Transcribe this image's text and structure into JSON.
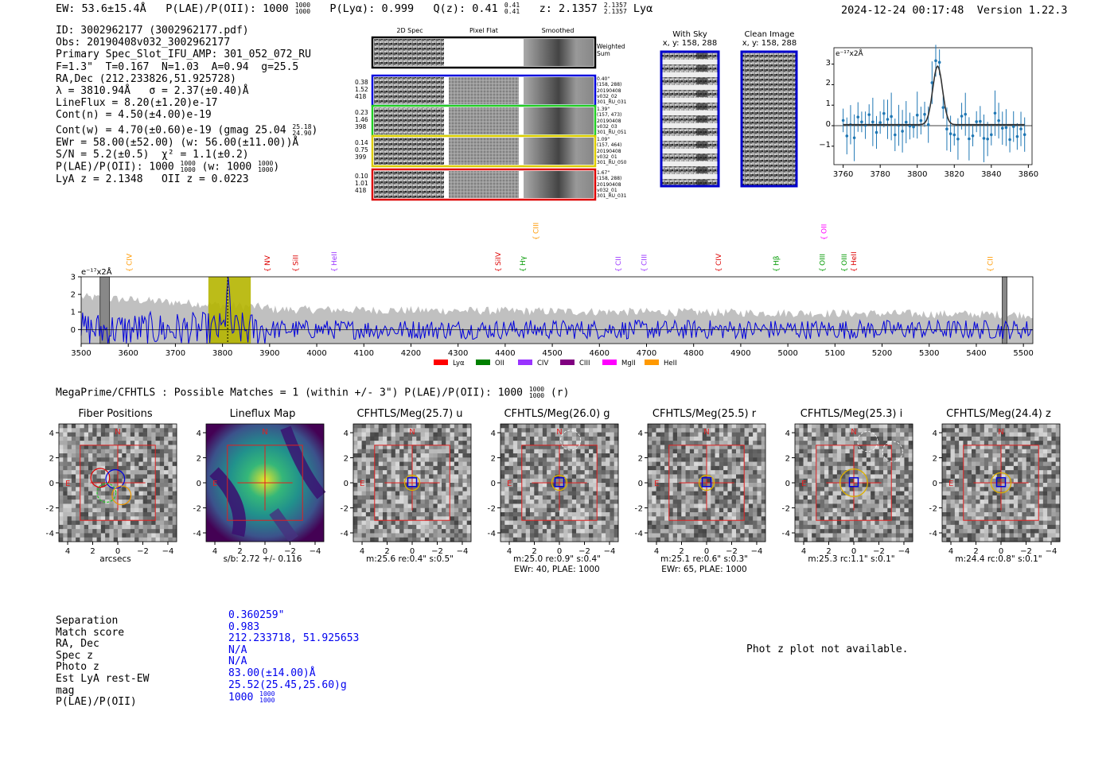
{
  "header": {
    "ew": "EW: 53.6±15.4Å",
    "plae": "P(LAE)/P(OII): 1000",
    "plae_frac": [
      "1000",
      "1000"
    ],
    "plya": "P(Lyα): 0.999",
    "qz": "Q(z): 0.41",
    "qz_frac": [
      "0.41",
      "0.41"
    ],
    "z": "z: 2.1357",
    "z_frac": [
      "2.1357",
      "2.1357"
    ],
    "line": "Lyα",
    "timestamp": "2024-12-24 00:17:48",
    "version": "Version 1.22.3"
  },
  "info": {
    "id": "ID: 3002962177 (3002962177.pdf)",
    "obs": "Obs: 20190408v032_3002962177",
    "primary": "Primary Spec_Slot_IFU_AMP: 301_052_072_RU",
    "fibers": "F=1.3\"  T=0.167  N=1.03  A=0.94  g=25.5",
    "radec": "RA,Dec (212.233826,51.925728)",
    "lambda": "λ = 3810.94Å   σ = 2.37(±0.40)Å",
    "lineflux": "LineFlux = 8.20(±1.20)e-17",
    "contn": "Cont(n) = 4.50(±4.00)e-19",
    "contw": "Cont(w) = 4.70(±0.60)e-19 (gmag 25.04",
    "contw_frac": [
      "25.18",
      "24.90"
    ],
    "ewr": "EWr = 58.00(±52.00) (w: 56.00(±11.00))Å",
    "sn": "S/N = 5.2(±0.5)  χ² = 1.1(±0.2)",
    "plae": "P(LAE)/P(OII): 1000",
    "plae_frac": [
      "1000",
      "1000"
    ],
    "plae_w": "(w: 1000",
    "plae_w_frac": [
      "1000",
      "1000"
    ],
    "lyaz": "LyA z = 2.1348   OII z = 0.0223"
  },
  "cutouts": {
    "col_titles": [
      "2D Spec",
      "Pixel Flat",
      "Smoothed"
    ],
    "weighted_sum": "Weighted Sum",
    "rows": [
      {
        "left": [
          "0.38",
          "1.52",
          "418"
        ],
        "right": [
          "0.40\"",
          "(158, 288)",
          "20190408",
          "v032_02",
          "301_RU_031"
        ],
        "color": "#0000dd"
      },
      {
        "left": [
          "0.23",
          "1.46",
          "398"
        ],
        "right": [
          "1.39\"",
          "(157, 473)",
          "20190408",
          "v032_03",
          "301_RU_051"
        ],
        "color": "#22cc22"
      },
      {
        "left": [
          "0.14",
          "0.75",
          "399"
        ],
        "right": [
          "1.09\"",
          "(157, 464)",
          "20190408",
          "v032_01",
          "301_RU_050"
        ],
        "color": "#ddcc00"
      },
      {
        "left": [
          "0.10",
          "1.01",
          "418"
        ],
        "right": [
          "1.67\"",
          "(158, 288)",
          "20190408",
          "v032_01",
          "301_RU_031"
        ],
        "color": "#dd0000"
      }
    ],
    "with_sky": "With Sky",
    "with_sky_xy": "x, y: 158, 288",
    "clean": "Clean Image",
    "clean_xy": "x, y: 158, 288"
  },
  "zoom_chart": {
    "ylabel": "e⁻¹⁷x2Å",
    "xticks": [
      "3760",
      "3780",
      "3800",
      "3820",
      "3840",
      "3860"
    ],
    "yticks": [
      "3",
      "2",
      "1",
      "0",
      "−1"
    ]
  },
  "chart_data": {
    "type": "line",
    "title": "",
    "ylabel": "e⁻¹⁷x2Å",
    "xlim": [
      3500,
      5520
    ],
    "ylim": [
      -0.8,
      3.0
    ],
    "xticks": [
      "3500",
      "3600",
      "3700",
      "3800",
      "3900",
      "4000",
      "4100",
      "4200",
      "4300",
      "4400",
      "4500",
      "4600",
      "4700",
      "4800",
      "4900",
      "5000",
      "5100",
      "5200",
      "5300",
      "5400",
      "5500"
    ],
    "yticks": [
      "3",
      "2",
      "1",
      "0"
    ],
    "highlight_range": [
      3770,
      3860
    ],
    "emission_peak_x": 3811,
    "emission_peak_y": 3.0,
    "lines": [
      {
        "label": "CIV",
        "x": 3602,
        "color": "#ff9900",
        "row": 1
      },
      {
        "label": "NV",
        "x": 3895,
        "color": "#dd0000",
        "row": 1
      },
      {
        "label": "SiII",
        "x": 3955,
        "color": "#dd0000",
        "row": 1
      },
      {
        "label": "HeII",
        "x": 4037,
        "color": "#9933ff",
        "row": 1
      },
      {
        "label": "CIII",
        "x": 4465,
        "color": "#ff9900",
        "row": 0
      },
      {
        "label": "SiIV",
        "x": 4385,
        "color": "#dd0000",
        "row": 1
      },
      {
        "label": "Hγ",
        "x": 4437,
        "color": "#009900",
        "row": 1
      },
      {
        "label": "CII",
        "x": 4640,
        "color": "#9933ff",
        "row": 1
      },
      {
        "label": "CIII",
        "x": 4695,
        "color": "#9933ff",
        "row": 1
      },
      {
        "label": "CIV",
        "x": 4853,
        "color": "#dd0000",
        "row": 1
      },
      {
        "label": "Hβ",
        "x": 4975,
        "color": "#009900",
        "row": 1
      },
      {
        "label": "OIII",
        "x": 5073,
        "color": "#009900",
        "row": 1
      },
      {
        "label": "OII",
        "x": 5077,
        "color": "#ff00ff",
        "row": 0
      },
      {
        "label": "OIII",
        "x": 5120,
        "color": "#009900",
        "row": 1
      },
      {
        "label": "HeII",
        "x": 5140,
        "color": "#dd0000",
        "row": 1
      },
      {
        "label": "CII",
        "x": 5430,
        "color": "#ff9900",
        "row": 1
      }
    ],
    "legend": [
      {
        "label": "Lyα",
        "color": "#ff0000"
      },
      {
        "label": "OII",
        "color": "#008000"
      },
      {
        "label": "CIV",
        "color": "#9933ff"
      },
      {
        "label": "CIII",
        "color": "#800080"
      },
      {
        "label": "MgII",
        "color": "#ff00ff"
      },
      {
        "label": "HeII",
        "color": "#ff9900"
      }
    ]
  },
  "catalog": {
    "title": "MegaPrime/CFHTLS : Possible Matches = 1 (within +/- 3\")  P(LAE)/P(OII): 1000",
    "title_frac": [
      "1000",
      "1000"
    ],
    "title_band": "(r)"
  },
  "panels": [
    {
      "title": "Fiber Positions",
      "sub": "arcsecs",
      "sub2": ""
    },
    {
      "title": "Lineflux Map",
      "sub": "s/b: 2.72 +/- 0.116",
      "sub2": ""
    },
    {
      "title": "CFHTLS/Meg(25.7) u",
      "sub": "m:25.6  re:0.4\"  s:0.5\"",
      "sub2": ""
    },
    {
      "title": "CFHTLS/Meg(26.0) g",
      "sub": "m:25.0  re:0.9\"  s:0.4\"",
      "sub2": "EWr: 40, PLAE: 1000"
    },
    {
      "title": "CFHTLS/Meg(25.5) r",
      "sub": "m:25.1  re:0.6\"  s:0.3\"",
      "sub2": "EWr: 65, PLAE: 1000"
    },
    {
      "title": "CFHTLS/Meg(25.3) i",
      "sub": "m:25.3 rc:1.1\"  s:0.1\"",
      "sub2": ""
    },
    {
      "title": "CFHTLS/Meg(24.4) z",
      "sub": "m:24.4 rc:0.8\"  s:0.1\"",
      "sub2": ""
    }
  ],
  "panel_axes": {
    "ticks": [
      "4",
      "2",
      "0",
      "−2",
      "−4"
    ],
    "xticks": [
      "−4",
      "−2",
      "0",
      "2",
      "4"
    ],
    "n": "N",
    "e": "E"
  },
  "match": {
    "labels": [
      "Separation",
      "Match score",
      "RA, Dec",
      "Spec z",
      "Photo z",
      "Est LyA rest-EW",
      "mag",
      "P(LAE)/P(OII)"
    ],
    "values": [
      "0.360259\"",
      "0.983",
      "212.233718, 51.925653",
      "N/A",
      "N/A",
      "83.00(±14.00)Å",
      "25.52(25.45,25.60)g",
      "1000"
    ],
    "plae_frac": [
      "1000",
      "1000"
    ]
  },
  "photz": "Phot z plot not available."
}
